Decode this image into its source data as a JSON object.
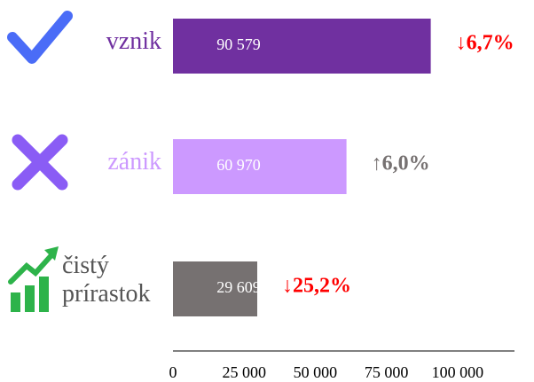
{
  "chart_data": {
    "type": "bar",
    "orientation": "horizontal",
    "categories": [
      "vznik",
      "zánik",
      "čistý prírastok"
    ],
    "values": [
      90579,
      60970,
      29609
    ],
    "value_labels": [
      "90 579",
      "60 970",
      "29 609"
    ],
    "colors": [
      "#7030a0",
      "#cc99ff",
      "#767171"
    ],
    "changes": [
      "↓6,7%",
      "↑6,0%",
      "↓25,2%"
    ],
    "change_colors": [
      "#ff0000",
      "#767171",
      "#ff0000"
    ],
    "xlim": [
      0,
      120000
    ],
    "xticks": [
      0,
      {
        "value": 25000,
        "label": "25 000"
      },
      {
        "value": 50000,
        "label": "50 000"
      },
      {
        "value": 75000,
        "label": "75 000"
      },
      {
        "value": 100000,
        "label": "100 000"
      }
    ],
    "grid": false
  }
}
